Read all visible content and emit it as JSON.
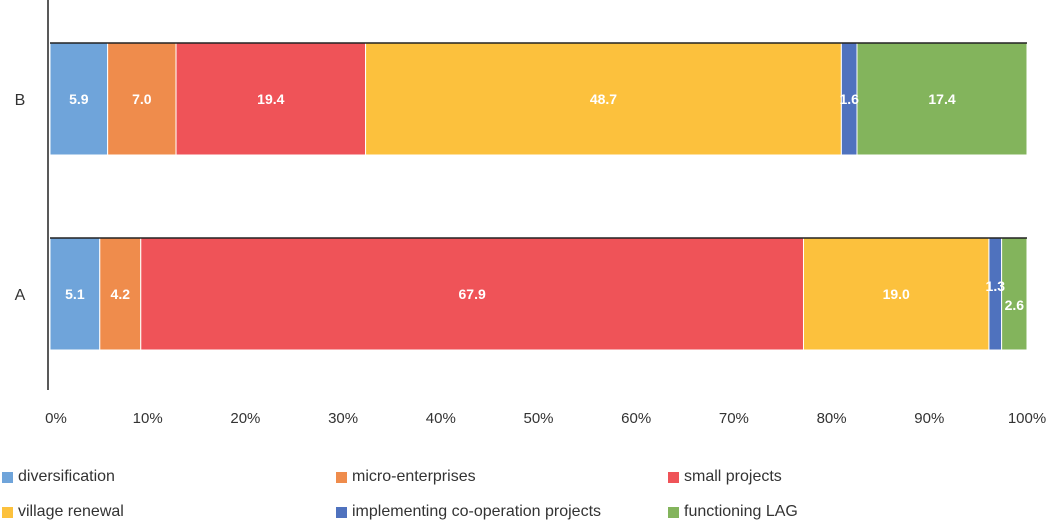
{
  "chart_data": {
    "type": "bar",
    "orientation": "horizontal",
    "stacked": "percent",
    "categories": [
      "B",
      "A"
    ],
    "series": [
      {
        "name": "diversification",
        "color": "#6fa4da",
        "values": [
          5.9,
          5.1
        ]
      },
      {
        "name": "micro-enterprises",
        "color": "#ef8c4c",
        "values": [
          7.0,
          4.2
        ]
      },
      {
        "name": "small projects",
        "color": "#ef5358",
        "values": [
          19.4,
          67.9
        ]
      },
      {
        "name": "village renewal",
        "color": "#fcc13d",
        "values": [
          48.7,
          19.0
        ]
      },
      {
        "name": "implementing co-operation projects",
        "color": "#4f72be",
        "values": [
          1.6,
          1.3
        ]
      },
      {
        "name": "functioning LAG",
        "color": "#83b45c",
        "values": [
          17.4,
          2.6
        ]
      }
    ],
    "data_labels": {
      "B": [
        "5.9",
        "7.0",
        "19.4",
        "48.7",
        "1.6",
        "17.4"
      ],
      "A": [
        "5.1",
        "4.2",
        "67.9",
        "19.0",
        "1.3",
        "2.6"
      ]
    },
    "x_ticks": [
      "0%",
      "10%",
      "20%",
      "30%",
      "40%",
      "50%",
      "60%",
      "70%",
      "80%",
      "90%",
      "100%"
    ],
    "xlim": [
      0,
      100
    ],
    "grid": false,
    "legend_position": "bottom"
  }
}
